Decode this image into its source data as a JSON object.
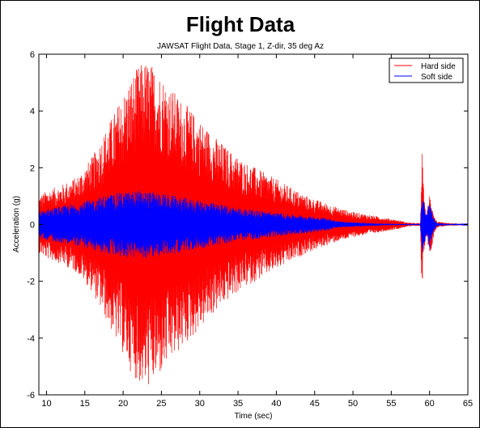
{
  "chart_data": {
    "type": "line",
    "title": "Flight Data",
    "subtitle": "JAWSAT Flight Data, Stage 1, Z-dir, 35 deg Az",
    "xlabel": "Time (sec)",
    "ylabel": "Acceleration (g)",
    "xlim": [
      9,
      65
    ],
    "ylim": [
      -6,
      6
    ],
    "xticks": [
      10,
      15,
      20,
      25,
      30,
      35,
      40,
      45,
      50,
      55,
      60,
      65
    ],
    "yticks": [
      -6,
      -4,
      -2,
      0,
      2,
      4,
      6
    ],
    "legend": {
      "placement": "top-right"
    },
    "grid": false,
    "series": [
      {
        "name": "Hard side",
        "color": "#ff0000",
        "envelope_description": "dense vibration signal; amplitude per time",
        "x": [
          9,
          10,
          12,
          14,
          16,
          18,
          20,
          21,
          22,
          23,
          24,
          25,
          26,
          28,
          30,
          32,
          34,
          36,
          38,
          40,
          42,
          44,
          46,
          48,
          50,
          52,
          54,
          56,
          57,
          58,
          58.8,
          59,
          59.3,
          59.6,
          60,
          60.3,
          60.6,
          61,
          62,
          63,
          64,
          65
        ],
        "amplitude": [
          1.0,
          1.2,
          1.4,
          1.7,
          2.4,
          3.5,
          4.6,
          5.2,
          5.6,
          5.8,
          5.6,
          5.3,
          4.9,
          4.3,
          3.7,
          3.1,
          2.6,
          2.2,
          1.9,
          1.6,
          1.3,
          1.0,
          0.8,
          0.6,
          0.45,
          0.35,
          0.25,
          0.15,
          0.08,
          0.05,
          0.05,
          2.6,
          0.9,
          0.3,
          1.1,
          0.8,
          0.3,
          0.1,
          0.06,
          0.04,
          0.03,
          0.02
        ]
      },
      {
        "name": "Soft side",
        "color": "#0000ff",
        "envelope_description": "dense vibration signal; amplitude per time",
        "x": [
          9,
          10,
          12,
          14,
          16,
          18,
          20,
          22,
          24,
          26,
          28,
          30,
          32,
          34,
          36,
          38,
          40,
          42,
          44,
          46,
          47,
          48,
          50,
          52,
          54,
          56,
          58,
          58.8,
          59,
          59.3,
          59.6,
          60,
          60.3,
          60.6,
          61,
          62,
          63,
          64,
          65
        ],
        "amplitude": [
          0.45,
          0.55,
          0.65,
          0.75,
          0.9,
          1.05,
          1.15,
          1.2,
          1.15,
          1.05,
          0.95,
          0.85,
          0.75,
          0.65,
          0.55,
          0.5,
          0.42,
          0.36,
          0.3,
          0.25,
          0.2,
          0.12,
          0.08,
          0.05,
          0.03,
          0.02,
          0.02,
          0.02,
          1.1,
          0.8,
          0.4,
          0.9,
          0.5,
          0.2,
          0.05,
          0.03,
          0.02,
          0.02,
          0.01
        ]
      }
    ]
  }
}
